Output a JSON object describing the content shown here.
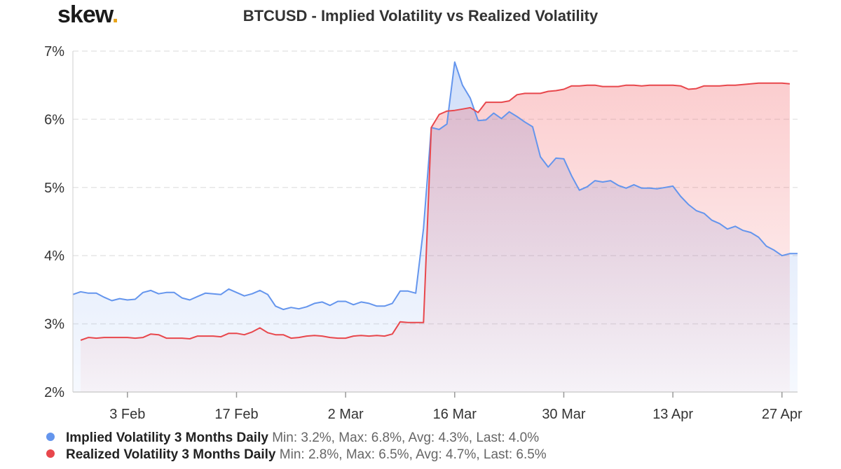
{
  "header": {
    "logo_text": "skew",
    "logo_dot": ".",
    "title": "BTCUSD - Implied Volatility vs Realized Volatility"
  },
  "colors": {
    "implied": "#6495ed",
    "realized": "#e8474c",
    "logo_dot": "#e8a317"
  },
  "legend": [
    {
      "name": "Implied Volatility 3 Months Daily",
      "stats": "Min: 3.2%, Max: 6.8%, Avg: 4.3%, Last: 4.0%"
    },
    {
      "name": "Realized Volatility 3 Months Daily",
      "stats": "Min: 2.8%, Max: 6.5%, Avg: 4.7%, Last: 6.5%"
    }
  ],
  "chart_data": {
    "type": "area",
    "title": "BTCUSD - Implied Volatility vs Realized Volatility",
    "ylim": [
      2,
      7
    ],
    "yticks": [
      "2%",
      "3%",
      "4%",
      "5%",
      "6%",
      "7%"
    ],
    "xlim": [
      "2020-01-27",
      "2020-04-29"
    ],
    "xticks": [
      {
        "date": "2020-02-03",
        "label": "3 Feb"
      },
      {
        "date": "2020-02-17",
        "label": "17 Feb"
      },
      {
        "date": "2020-03-02",
        "label": "2 Mar"
      },
      {
        "date": "2020-03-16",
        "label": "16 Mar"
      },
      {
        "date": "2020-03-30",
        "label": "30 Mar"
      },
      {
        "date": "2020-04-13",
        "label": "13 Apr"
      },
      {
        "date": "2020-04-27",
        "label": "27 Apr"
      }
    ],
    "grid": true,
    "legend_position": "bottom-left",
    "series": [
      {
        "name": "Implied Volatility 3 Months Daily",
        "x": [
          "2020-01-27",
          "2020-01-28",
          "2020-01-29",
          "2020-01-30",
          "2020-01-31",
          "2020-02-01",
          "2020-02-02",
          "2020-02-03",
          "2020-02-04",
          "2020-02-05",
          "2020-02-06",
          "2020-02-07",
          "2020-02-08",
          "2020-02-09",
          "2020-02-10",
          "2020-02-11",
          "2020-02-12",
          "2020-02-13",
          "2020-02-14",
          "2020-02-15",
          "2020-02-16",
          "2020-02-17",
          "2020-02-18",
          "2020-02-19",
          "2020-02-20",
          "2020-02-21",
          "2020-02-22",
          "2020-02-23",
          "2020-02-24",
          "2020-02-25",
          "2020-02-26",
          "2020-02-27",
          "2020-02-28",
          "2020-02-29",
          "2020-03-01",
          "2020-03-02",
          "2020-03-03",
          "2020-03-04",
          "2020-03-05",
          "2020-03-06",
          "2020-03-07",
          "2020-03-08",
          "2020-03-09",
          "2020-03-10",
          "2020-03-11",
          "2020-03-12",
          "2020-03-13",
          "2020-03-14",
          "2020-03-15",
          "2020-03-16",
          "2020-03-17",
          "2020-03-18",
          "2020-03-19",
          "2020-03-20",
          "2020-03-21",
          "2020-03-22",
          "2020-03-23",
          "2020-03-24",
          "2020-03-25",
          "2020-03-26",
          "2020-03-27",
          "2020-03-28",
          "2020-03-29",
          "2020-03-30",
          "2020-03-31",
          "2020-04-01",
          "2020-04-02",
          "2020-04-03",
          "2020-04-04",
          "2020-04-05",
          "2020-04-06",
          "2020-04-07",
          "2020-04-08",
          "2020-04-09",
          "2020-04-10",
          "2020-04-11",
          "2020-04-12",
          "2020-04-13",
          "2020-04-14",
          "2020-04-15",
          "2020-04-16",
          "2020-04-17",
          "2020-04-18",
          "2020-04-19",
          "2020-04-20",
          "2020-04-21",
          "2020-04-22",
          "2020-04-23",
          "2020-04-24",
          "2020-04-25",
          "2020-04-26",
          "2020-04-27",
          "2020-04-28",
          "2020-04-29"
        ],
        "values": [
          3.43,
          3.47,
          3.45,
          3.45,
          3.39,
          3.34,
          3.37,
          3.35,
          3.36,
          3.46,
          3.49,
          3.44,
          3.46,
          3.46,
          3.38,
          3.35,
          3.4,
          3.45,
          3.44,
          3.43,
          3.51,
          3.46,
          3.41,
          3.44,
          3.49,
          3.43,
          3.26,
          3.21,
          3.24,
          3.22,
          3.25,
          3.3,
          3.32,
          3.27,
          3.33,
          3.33,
          3.28,
          3.32,
          3.3,
          3.26,
          3.26,
          3.3,
          3.48,
          3.48,
          3.45,
          4.4,
          5.88,
          5.85,
          5.93,
          6.84,
          6.5,
          6.31,
          5.98,
          5.99,
          6.09,
          6.01,
          6.11,
          6.04,
          5.96,
          5.89,
          5.45,
          5.3,
          5.43,
          5.42,
          5.17,
          4.96,
          5.01,
          5.1,
          5.08,
          5.1,
          5.03,
          4.99,
          5.04,
          4.99,
          4.99,
          4.98,
          5.0,
          5.02,
          4.87,
          4.75,
          4.66,
          4.62,
          4.52,
          4.47,
          4.39,
          4.43,
          4.37,
          4.34,
          4.27,
          4.14,
          4.08,
          4.0,
          4.03,
          4.03
        ]
      },
      {
        "name": "Realized Volatility 3 Months Daily",
        "x": [
          "2020-01-28",
          "2020-01-29",
          "2020-01-30",
          "2020-01-31",
          "2020-02-01",
          "2020-02-02",
          "2020-02-03",
          "2020-02-04",
          "2020-02-05",
          "2020-02-06",
          "2020-02-07",
          "2020-02-08",
          "2020-02-09",
          "2020-02-10",
          "2020-02-11",
          "2020-02-12",
          "2020-02-13",
          "2020-02-14",
          "2020-02-15",
          "2020-02-16",
          "2020-02-17",
          "2020-02-18",
          "2020-02-19",
          "2020-02-20",
          "2020-02-21",
          "2020-02-22",
          "2020-02-23",
          "2020-02-24",
          "2020-02-25",
          "2020-02-26",
          "2020-02-27",
          "2020-02-28",
          "2020-02-29",
          "2020-03-01",
          "2020-03-02",
          "2020-03-03",
          "2020-03-04",
          "2020-03-05",
          "2020-03-06",
          "2020-03-07",
          "2020-03-08",
          "2020-03-09",
          "2020-03-10",
          "2020-03-11",
          "2020-03-12",
          "2020-03-13",
          "2020-03-14",
          "2020-03-15",
          "2020-03-16",
          "2020-03-17",
          "2020-03-18",
          "2020-03-19",
          "2020-03-20",
          "2020-03-21",
          "2020-03-22",
          "2020-03-23",
          "2020-03-24",
          "2020-03-25",
          "2020-03-26",
          "2020-03-27",
          "2020-03-28",
          "2020-03-29",
          "2020-03-30",
          "2020-03-31",
          "2020-04-01",
          "2020-04-02",
          "2020-04-03",
          "2020-04-04",
          "2020-04-05",
          "2020-04-06",
          "2020-04-07",
          "2020-04-08",
          "2020-04-09",
          "2020-04-10",
          "2020-04-11",
          "2020-04-12",
          "2020-04-13",
          "2020-04-14",
          "2020-04-15",
          "2020-04-16",
          "2020-04-17",
          "2020-04-18",
          "2020-04-19",
          "2020-04-20",
          "2020-04-21",
          "2020-04-22",
          "2020-04-23",
          "2020-04-24",
          "2020-04-25",
          "2020-04-26",
          "2020-04-27",
          "2020-04-28"
        ],
        "values": [
          2.76,
          2.8,
          2.79,
          2.8,
          2.8,
          2.8,
          2.8,
          2.79,
          2.8,
          2.85,
          2.84,
          2.79,
          2.79,
          2.79,
          2.78,
          2.82,
          2.82,
          2.82,
          2.81,
          2.86,
          2.86,
          2.84,
          2.88,
          2.94,
          2.87,
          2.84,
          2.84,
          2.79,
          2.8,
          2.82,
          2.83,
          2.82,
          2.8,
          2.79,
          2.79,
          2.82,
          2.83,
          2.82,
          2.83,
          2.82,
          2.85,
          3.03,
          3.02,
          3.02,
          3.02,
          5.88,
          6.07,
          6.12,
          6.13,
          6.15,
          6.17,
          6.1,
          6.25,
          6.25,
          6.25,
          6.27,
          6.36,
          6.38,
          6.38,
          6.38,
          6.41,
          6.42,
          6.44,
          6.49,
          6.49,
          6.5,
          6.5,
          6.48,
          6.48,
          6.48,
          6.5,
          6.5,
          6.49,
          6.5,
          6.5,
          6.5,
          6.5,
          6.49,
          6.44,
          6.45,
          6.49,
          6.49,
          6.49,
          6.5,
          6.5,
          6.51,
          6.52,
          6.53,
          6.53,
          6.53,
          6.53,
          6.52
        ]
      }
    ]
  }
}
